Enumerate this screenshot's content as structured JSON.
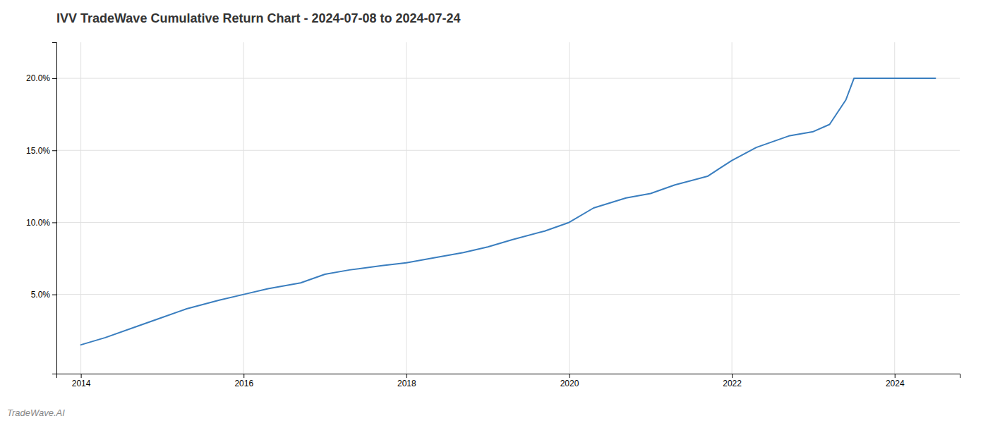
{
  "chart_data": {
    "type": "line",
    "title": "IVV TradeWave Cumulative Return Chart - 2024-07-08 to 2024-07-24",
    "annotations": [
      "TradeWave.AI"
    ],
    "x": [
      2014.0,
      2014.3,
      2014.7,
      2015.0,
      2015.3,
      2015.7,
      2016.0,
      2016.3,
      2016.7,
      2017.0,
      2017.3,
      2017.7,
      2018.0,
      2018.3,
      2018.7,
      2019.0,
      2019.3,
      2019.7,
      2020.0,
      2020.3,
      2020.7,
      2021.0,
      2021.3,
      2021.7,
      2022.0,
      2022.3,
      2022.7,
      2023.0,
      2023.2,
      2023.4,
      2023.5,
      2024.0,
      2024.5
    ],
    "values": [
      0.015,
      0.02,
      0.028,
      0.034,
      0.04,
      0.046,
      0.05,
      0.054,
      0.058,
      0.064,
      0.067,
      0.07,
      0.072,
      0.075,
      0.079,
      0.083,
      0.088,
      0.094,
      0.1,
      0.11,
      0.117,
      0.12,
      0.126,
      0.132,
      0.143,
      0.152,
      0.16,
      0.163,
      0.168,
      0.185,
      0.2,
      0.2,
      0.2
    ],
    "color": "#3a7ebf",
    "xlim": [
      2013.7,
      2024.8
    ],
    "ylim": [
      -0.005,
      0.225
    ],
    "xticks": [
      2014,
      2016,
      2018,
      2020,
      2022,
      2024
    ],
    "yticks": [
      {
        "value": 0.05,
        "label": "5.0%"
      },
      {
        "value": 0.1,
        "label": "10.0%"
      },
      {
        "value": 0.15,
        "label": "15.0%"
      },
      {
        "value": 0.2,
        "label": "20.0%"
      }
    ],
    "grid": true
  }
}
